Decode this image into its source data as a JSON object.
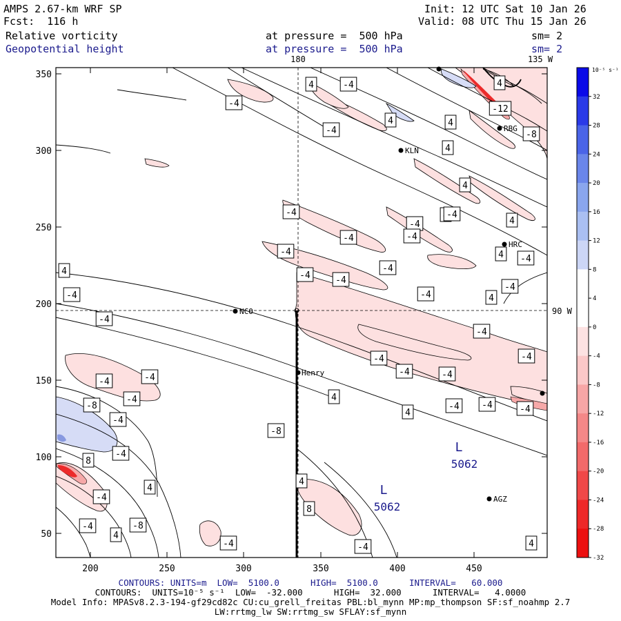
{
  "header": {
    "model": "AMPS 2.67-km WRF SP",
    "forecast": "Fcst:  116 h",
    "init": "Init: 12 UTC Sat 10 Jan 26",
    "valid": "Valid: 08 UTC Thu 15 Jan 26",
    "field1": "Relative vorticity",
    "field2": "Geopotential height",
    "level1": "at pressure =  500 hPa",
    "level2": "at pressure =  500 hPa",
    "smooth1": "sm= 2",
    "smooth2": "sm= 2"
  },
  "map": {
    "lon_label_180": "180",
    "lon_label_135": "135 W",
    "lon_label_90": "90 W",
    "x_ticks": [
      "200",
      "250",
      "300",
      "350",
      "400",
      "450"
    ],
    "y_ticks": [
      "350",
      "300",
      "250",
      "200",
      "150",
      "100",
      "50"
    ],
    "stations": [
      "NCO",
      "Henry",
      "KLN",
      "HRC",
      "RBG",
      "AGZ"
    ],
    "lows": [
      {
        "symbol": "L",
        "value": "5062"
      },
      {
        "symbol": "L",
        "value": "5062"
      }
    ],
    "contour_labels": [
      "-4",
      "4",
      "-4",
      "4",
      "-4",
      "4",
      "4",
      "-12",
      "-4",
      "4",
      "4",
      "-8",
      "4",
      "4",
      "-4",
      "4",
      "-4",
      "-4",
      "-4",
      "-4",
      "4",
      "-4",
      "-4",
      "-4",
      "4",
      "-4",
      "-4",
      "-4",
      "-4",
      "-4",
      "-4",
      "-4",
      "-4",
      "-4",
      "-4",
      "-4",
      "-8",
      "4",
      "4",
      "-4",
      "-8",
      "-4",
      "-4",
      "-4",
      "8",
      "4",
      "-4",
      "4",
      "8",
      "-4",
      "-8",
      "4",
      "-4",
      "-4",
      "4",
      "-4",
      "-4",
      "-4"
    ]
  },
  "colorbar": {
    "unit": "10⁻⁵ s⁻¹",
    "ticks": [
      "32",
      "28",
      "24",
      "20",
      "16",
      "12",
      "8",
      "4",
      "0",
      "-4",
      "-8",
      "-12",
      "-16",
      "-20",
      "-24",
      "-28",
      "-32"
    ],
    "colors": [
      "#0a0ae8",
      "#2a3ae8",
      "#4a64e8",
      "#6a86ea",
      "#8aa6ee",
      "#aabff2",
      "#ccd6f6",
      "#ffffff",
      "#ffffff",
      "#fde2e2",
      "#fbc8c8",
      "#f7a6a6",
      "#f48888",
      "#f26a6a",
      "#f04848",
      "#ee2828",
      "#ec1010"
    ]
  },
  "footer": {
    "line1_a": "CONTOURS: UNITS=m  LOW=  5100.0      HIGH=  5100.0      INTERVAL=   60.000",
    "line2": "CONTOURS:  UNITS=10⁻⁵ s⁻¹  LOW=  -32.000      HIGH=  32.000      INTERVAL=   4.0000",
    "line3": "Model Info: MPASv8.2.3-194-gf29cd82c CU:cu_grell_freitas PBL:bl_mynn MP:mp_thompson SF:sf_noahmp 2.7",
    "line4": "LW:rrtmg_lw SW:rrtmg_sw SFLAY:sf_mynn"
  },
  "colors": {
    "title_blue": "#1a1a8c",
    "positive_fill": "#fde0e0",
    "negative_fill": "#d8dcf6",
    "accent_red": "#e83030"
  }
}
